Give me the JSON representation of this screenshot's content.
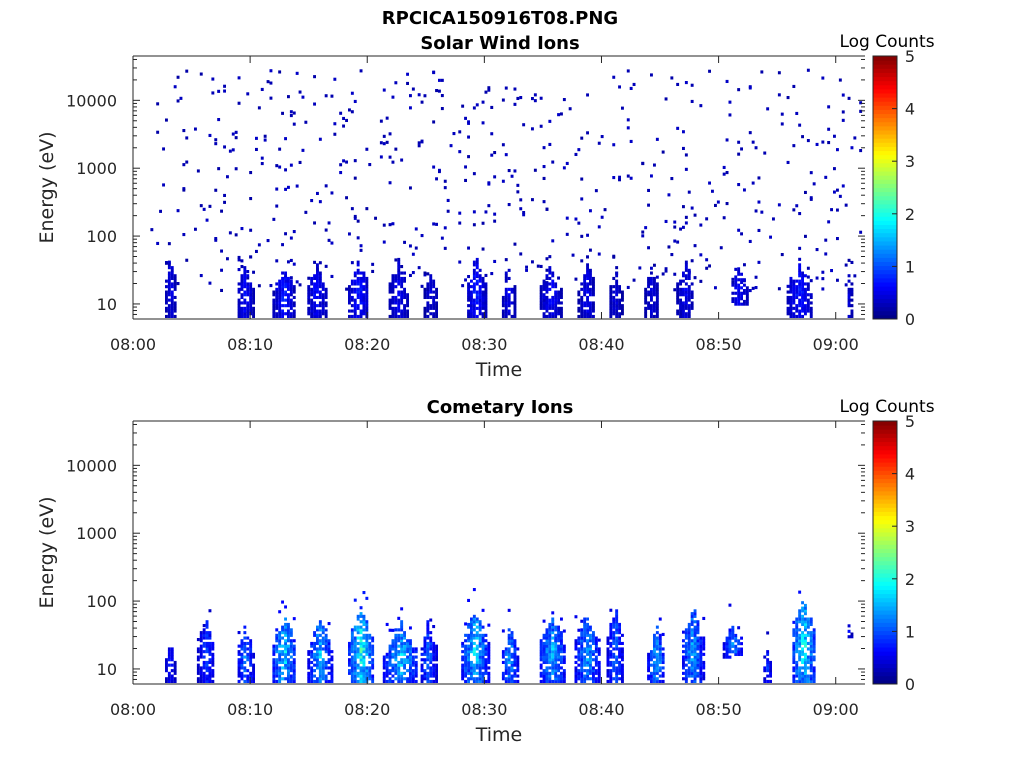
{
  "figure": {
    "title": "RPCICA150916T08.PNG"
  },
  "chart_data": [
    {
      "type": "heatmap",
      "title": "Solar Wind Ions",
      "xlabel": "Time",
      "ylabel": "Energy (eV)",
      "x_ticks": [
        "08:00",
        "08:10",
        "08:20",
        "08:30",
        "08:40",
        "08:50",
        "09:00"
      ],
      "x_range_minutes": [
        0,
        62.5
      ],
      "y_scale": "log",
      "y_ticks": [
        "10",
        "100",
        "1000",
        "10000"
      ],
      "y_range": [
        6,
        45000
      ],
      "colorbar": {
        "label": "Log Counts",
        "ticks": [
          "0",
          "1",
          "2",
          "3",
          "4",
          "5"
        ],
        "range": [
          0,
          5
        ],
        "colormap": "jet"
      },
      "seed": 11,
      "background_scatter": {
        "t_start": 1.6,
        "t_end": 62.3,
        "density": 10,
        "log_e_min": 1.2,
        "log_e_max": 4.45,
        "level": 0.3
      },
      "bursts": [
        {
          "t": 3.2,
          "width": 0.9,
          "e_low": 6,
          "e_high": 60,
          "peak": 0.6
        },
        {
          "t": 9.6,
          "width": 1.4,
          "e_low": 6,
          "e_high": 40,
          "peak": 0.7
        },
        {
          "t": 12.9,
          "width": 1.8,
          "e_low": 6,
          "e_high": 40,
          "peak": 0.8
        },
        {
          "t": 15.7,
          "width": 1.8,
          "e_low": 6,
          "e_high": 35,
          "peak": 0.7
        },
        {
          "t": 19.3,
          "width": 1.8,
          "e_low": 6,
          "e_high": 40,
          "peak": 0.8
        },
        {
          "t": 22.7,
          "width": 1.8,
          "e_low": 6,
          "e_high": 40,
          "peak": 0.6
        },
        {
          "t": 25.5,
          "width": 1.2,
          "e_low": 6,
          "e_high": 30,
          "peak": 0.5
        },
        {
          "t": 29.3,
          "width": 1.8,
          "e_low": 6,
          "e_high": 45,
          "peak": 0.8
        },
        {
          "t": 32.1,
          "width": 1.2,
          "e_low": 6,
          "e_high": 35,
          "peak": 0.6
        },
        {
          "t": 35.7,
          "width": 1.8,
          "e_low": 6,
          "e_high": 35,
          "peak": 0.7
        },
        {
          "t": 38.8,
          "width": 1.5,
          "e_low": 6,
          "e_high": 40,
          "peak": 0.6
        },
        {
          "t": 41.2,
          "width": 1.2,
          "e_low": 6,
          "e_high": 30,
          "peak": 0.5
        },
        {
          "t": 44.3,
          "width": 1.4,
          "e_low": 6,
          "e_high": 35,
          "peak": 0.5
        },
        {
          "t": 47.2,
          "width": 1.5,
          "e_low": 6,
          "e_high": 40,
          "peak": 0.6
        },
        {
          "t": 51.8,
          "width": 1.6,
          "e_low": 10,
          "e_high": 35,
          "peak": 0.7
        },
        {
          "t": 56.9,
          "width": 2.2,
          "e_low": 6,
          "e_high": 40,
          "peak": 0.8
        },
        {
          "t": 61.2,
          "width": 0.6,
          "e_low": 6,
          "e_high": 30,
          "peak": 0.5
        }
      ]
    },
    {
      "type": "heatmap",
      "title": "Cometary Ions",
      "xlabel": "Time",
      "ylabel": "Energy (eV)",
      "x_ticks": [
        "08:00",
        "08:10",
        "08:20",
        "08:30",
        "08:40",
        "08:50",
        "09:00"
      ],
      "x_range_minutes": [
        0,
        62.5
      ],
      "y_scale": "log",
      "y_ticks": [
        "10",
        "100",
        "1000",
        "10000"
      ],
      "y_range": [
        6,
        45000
      ],
      "colorbar": {
        "label": "Log Counts",
        "ticks": [
          "0",
          "1",
          "2",
          "3",
          "4",
          "5"
        ],
        "range": [
          0,
          5
        ],
        "colormap": "jet"
      },
      "seed": 7,
      "background_scatter": null,
      "bursts": [
        {
          "t": 3.2,
          "width": 0.9,
          "e_low": 6,
          "e_high": 25,
          "peak": 0.8
        },
        {
          "t": 6.3,
          "width": 1.5,
          "e_low": 6,
          "e_high": 60,
          "peak": 1.0
        },
        {
          "t": 9.6,
          "width": 1.5,
          "e_low": 6,
          "e_high": 40,
          "peak": 1.3
        },
        {
          "t": 12.9,
          "width": 2.2,
          "e_low": 6,
          "e_high": 60,
          "peak": 1.8
        },
        {
          "t": 16.0,
          "width": 2.2,
          "e_low": 6,
          "e_high": 60,
          "peak": 1.6
        },
        {
          "t": 19.5,
          "width": 2.2,
          "e_low": 6,
          "e_high": 80,
          "peak": 2.1
        },
        {
          "t": 22.9,
          "width": 3.0,
          "e_low": 6,
          "e_high": 45,
          "peak": 1.7
        },
        {
          "t": 25.2,
          "width": 1.5,
          "e_low": 6,
          "e_high": 45,
          "peak": 1.2
        },
        {
          "t": 29.2,
          "width": 2.4,
          "e_low": 6,
          "e_high": 80,
          "peak": 1.8
        },
        {
          "t": 32.2,
          "width": 1.5,
          "e_low": 6,
          "e_high": 40,
          "peak": 1.5
        },
        {
          "t": 35.8,
          "width": 2.4,
          "e_low": 6,
          "e_high": 60,
          "peak": 1.6
        },
        {
          "t": 38.8,
          "width": 2.2,
          "e_low": 6,
          "e_high": 60,
          "peak": 1.5
        },
        {
          "t": 41.2,
          "width": 1.5,
          "e_low": 6,
          "e_high": 80,
          "peak": 1.2
        },
        {
          "t": 44.7,
          "width": 1.5,
          "e_low": 6,
          "e_high": 40,
          "peak": 1.6
        },
        {
          "t": 47.8,
          "width": 2.0,
          "e_low": 6,
          "e_high": 80,
          "peak": 1.5
        },
        {
          "t": 51.3,
          "width": 1.8,
          "e_low": 15,
          "e_high": 40,
          "peak": 1.4
        },
        {
          "t": 54.2,
          "width": 0.8,
          "e_low": 6,
          "e_high": 20,
          "peak": 0.9
        },
        {
          "t": 57.3,
          "width": 2.2,
          "e_low": 6,
          "e_high": 110,
          "peak": 1.9
        },
        {
          "t": 61.2,
          "width": 0.4,
          "e_low": 30,
          "e_high": 40,
          "peak": 0.8
        }
      ]
    }
  ]
}
